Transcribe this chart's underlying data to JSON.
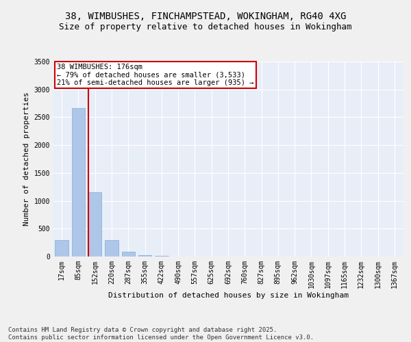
{
  "title_line1": "38, WIMBUSHES, FINCHAMPSTEAD, WOKINGHAM, RG40 4XG",
  "title_line2": "Size of property relative to detached houses in Wokingham",
  "xlabel": "Distribution of detached houses by size in Wokingham",
  "ylabel": "Number of detached properties",
  "categories": [
    "17sqm",
    "85sqm",
    "152sqm",
    "220sqm",
    "287sqm",
    "355sqm",
    "422sqm",
    "490sqm",
    "557sqm",
    "625sqm",
    "692sqm",
    "760sqm",
    "827sqm",
    "895sqm",
    "962sqm",
    "1030sqm",
    "1097sqm",
    "1165sqm",
    "1232sqm",
    "1300sqm",
    "1367sqm"
  ],
  "values": [
    290,
    2660,
    1160,
    290,
    85,
    30,
    10,
    0,
    0,
    0,
    0,
    0,
    0,
    0,
    0,
    0,
    0,
    0,
    0,
    0,
    0
  ],
  "bar_color": "#aec6e8",
  "bar_edge_color": "#7aadd4",
  "background_color": "#e8eef8",
  "grid_color": "#ffffff",
  "vline_color": "#cc0000",
  "annotation_text": "38 WIMBUSHES: 176sqm\n← 79% of detached houses are smaller (3,533)\n21% of semi-detached houses are larger (935) →",
  "annotation_box_color": "#ffffff",
  "annotation_border_color": "#cc0000",
  "ylim": [
    0,
    3500
  ],
  "yticks": [
    0,
    500,
    1000,
    1500,
    2000,
    2500,
    3000,
    3500
  ],
  "fig_background": "#f0f0f0",
  "footnote": "Contains HM Land Registry data © Crown copyright and database right 2025.\nContains public sector information licensed under the Open Government Licence v3.0.",
  "title_fontsize": 10,
  "subtitle_fontsize": 9,
  "axis_label_fontsize": 8,
  "tick_fontsize": 7,
  "annotation_fontsize": 7.5,
  "footnote_fontsize": 6.5
}
